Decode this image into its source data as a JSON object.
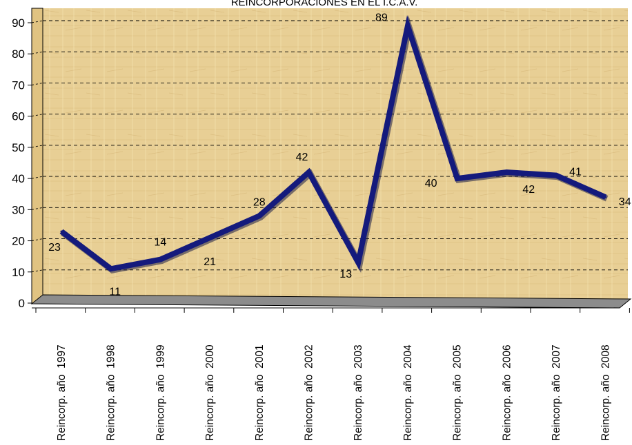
{
  "chart_data": {
    "type": "line",
    "title": "REINCORPORACIONES EN EL I.C.A.V.",
    "categories": [
      "Reincorp. año  1997",
      "Reincorp. año  1998",
      "Reincorp. año  1999",
      "Reincorp. año  2000",
      "Reincorp. año  2001",
      "Reincorp. año  2002",
      "Reincorp. año  2003",
      "Reincorp. año  2004",
      "Reincorp. año  2005",
      "Reincorp. año  2006",
      "Reincorp. año  2007",
      "Reincorp. año  2008"
    ],
    "series": [
      {
        "values": [
          23,
          11,
          14,
          21,
          28,
          42,
          13,
          89,
          40,
          42,
          41,
          34
        ],
        "color": "#141a7c"
      }
    ],
    "data_labels": [
      "23",
      "11",
      "14",
      "21",
      "28",
      "42",
      "13",
      "89",
      "40",
      "42",
      "41",
      "34"
    ],
    "y_ticks": [
      "0",
      "10",
      "20",
      "30",
      "40",
      "50",
      "60",
      "70",
      "80",
      "90"
    ],
    "ylim": [
      0,
      90
    ],
    "grid": true,
    "wall_color": "#e8cf95",
    "floor_color": "#8c8c8c"
  }
}
